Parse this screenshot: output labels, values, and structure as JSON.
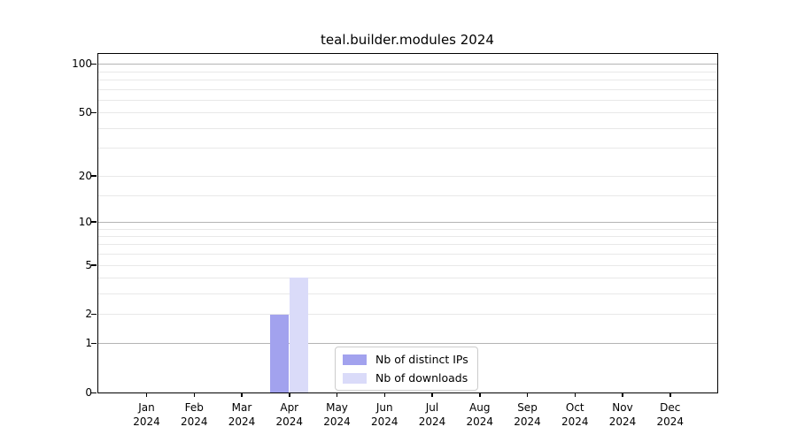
{
  "title": "teal.builder.modules 2024",
  "colors": {
    "distinct_ips": "#a2a2ee",
    "downloads": "#dadbf9",
    "grid_minor": "#e8e8e8",
    "grid_major": "#b4b4b4",
    "axis": "#000000"
  },
  "legend": {
    "items": [
      {
        "label": "Nb of distinct IPs"
      },
      {
        "label": "Nb of downloads"
      }
    ]
  },
  "chart_data": {
    "type": "bar",
    "title": "teal.builder.modules 2024",
    "categories": [
      "Jan 2024",
      "Feb 2024",
      "Mar 2024",
      "Apr 2024",
      "May 2024",
      "Jun 2024",
      "Jul 2024",
      "Aug 2024",
      "Sep 2024",
      "Oct 2024",
      "Nov 2024",
      "Dec 2024"
    ],
    "x_month_labels": [
      "Jan",
      "Feb",
      "Mar",
      "Apr",
      "May",
      "Jun",
      "Jul",
      "Aug",
      "Sep",
      "Oct",
      "Nov",
      "Dec"
    ],
    "x_year_label": "2024",
    "series": [
      {
        "name": "Nb of distinct IPs",
        "color": "#a2a2ee",
        "values": [
          0,
          0,
          0,
          2,
          0,
          0,
          0,
          0,
          0,
          0,
          0,
          0
        ]
      },
      {
        "name": "Nb of downloads",
        "color": "#dadbf9",
        "values": [
          0,
          0,
          0,
          4,
          0,
          0,
          0,
          0,
          0,
          0,
          0,
          0
        ]
      }
    ],
    "xlabel": "",
    "ylabel": "",
    "yscale": "log1p",
    "yticks": [
      0,
      1,
      2,
      5,
      10,
      20,
      50,
      100
    ],
    "emphasized_yticks": [
      1,
      10,
      100
    ],
    "minor_yticks": [
      3,
      4,
      6,
      7,
      8,
      9,
      15,
      30,
      40,
      60,
      70,
      80,
      90
    ],
    "ylim": [
      0,
      115
    ],
    "grid": true,
    "legend_position": "lower center"
  }
}
